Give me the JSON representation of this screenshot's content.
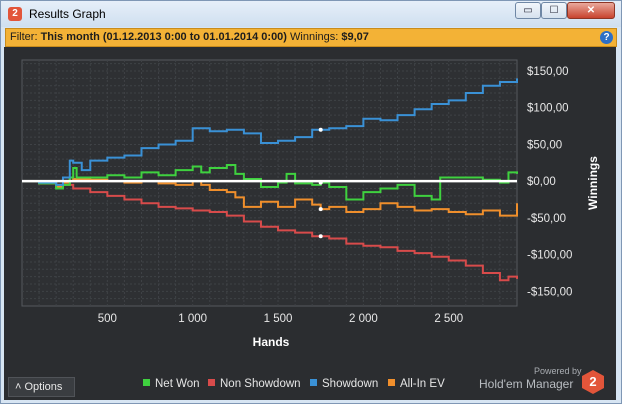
{
  "window": {
    "title": "Results Graph",
    "controls": {
      "minimize": "▭",
      "maximize": "☐",
      "close": "✕"
    },
    "app_icon_text": "2"
  },
  "filter": {
    "label": "Filter:",
    "value": "This month (01.12.2013 0:00 to 01.01.2014 0:00)",
    "winnings_label": "Winnings:",
    "winnings_value": "$9,07",
    "help_text": "?"
  },
  "footer": {
    "options_label": "Options",
    "options_icon": "chevron-up-icon",
    "powered_by": "Powered by",
    "brand": "Hold'em Manager",
    "brand_logo_text": "2"
  },
  "colors": {
    "net_won": "#3fd13f",
    "non_showdown": "#d84b4b",
    "showdown": "#3a91d6",
    "all_in_ev": "#f08f2c",
    "filter_bar": "#f3b236",
    "panel": "#2b2d30"
  },
  "chart_data": {
    "type": "line",
    "xlabel": "Hands",
    "ylabel": "Winnings",
    "xlim": [
      0,
      2900
    ],
    "ylim": [
      -170,
      165
    ],
    "x_ticks": [
      500,
      1000,
      1500,
      2000,
      2500
    ],
    "x_tick_labels": [
      "500",
      "1 000",
      "1 500",
      "2 000",
      "2 500"
    ],
    "y_ticks": [
      150,
      100,
      50,
      0,
      -50,
      -100,
      -150
    ],
    "y_tick_labels": [
      "$150,00",
      "$100,00",
      "$50,00",
      "$0,00",
      "-$50,00",
      "-$100,00",
      "-$150,00"
    ],
    "grid": true,
    "legend_position": "bottom",
    "series": [
      {
        "name": "Net Won",
        "color": "#3fd13f",
        "x": [
          0,
          100,
          200,
          240,
          280,
          300,
          320,
          500,
          600,
          700,
          800,
          900,
          1000,
          1050,
          1100,
          1200,
          1250,
          1300,
          1400,
          1500,
          1550,
          1600,
          1700,
          1750,
          1800,
          1900,
          2000,
          2100,
          2200,
          2300,
          2400,
          2450,
          2600,
          2700,
          2800,
          2850,
          2900
        ],
        "y": [
          0,
          -3,
          -10,
          -5,
          5,
          18,
          5,
          8,
          5,
          12,
          8,
          15,
          20,
          12,
          18,
          22,
          10,
          3,
          -8,
          -2,
          10,
          -3,
          -5,
          -2,
          -8,
          -25,
          -15,
          -10,
          -5,
          -20,
          -25,
          5,
          5,
          2,
          -2,
          12,
          10
        ]
      },
      {
        "name": "Non Showdown",
        "color": "#d84b4b",
        "x": [
          0,
          100,
          200,
          300,
          400,
          500,
          600,
          700,
          800,
          900,
          1000,
          1100,
          1200,
          1300,
          1400,
          1500,
          1600,
          1700,
          1800,
          1900,
          2000,
          2100,
          2200,
          2300,
          2400,
          2500,
          2600,
          2700,
          2800,
          2850,
          2900
        ],
        "y": [
          0,
          -3,
          -5,
          -10,
          -15,
          -20,
          -25,
          -30,
          -35,
          -37,
          -40,
          -42,
          -47,
          -55,
          -62,
          -67,
          -70,
          -75,
          -78,
          -85,
          -88,
          -90,
          -95,
          -98,
          -103,
          -108,
          -115,
          -125,
          -135,
          -130,
          -133
        ]
      },
      {
        "name": "Showdown",
        "color": "#3a91d6",
        "x": [
          0,
          100,
          200,
          240,
          280,
          300,
          350,
          400,
          500,
          600,
          700,
          800,
          900,
          1000,
          1100,
          1200,
          1300,
          1400,
          1500,
          1600,
          1700,
          1800,
          1900,
          2000,
          2100,
          2200,
          2300,
          2400,
          2500,
          2600,
          2700,
          2800,
          2900
        ],
        "y": [
          0,
          -2,
          -5,
          5,
          28,
          25,
          15,
          28,
          32,
          35,
          45,
          50,
          55,
          72,
          68,
          70,
          65,
          52,
          55,
          60,
          70,
          72,
          75,
          85,
          83,
          90,
          98,
          105,
          110,
          120,
          130,
          135,
          140
        ]
      },
      {
        "name": "All-In EV",
        "color": "#f08f2c",
        "x": [
          0,
          100,
          200,
          240,
          280,
          300,
          400,
          500,
          600,
          700,
          800,
          900,
          1000,
          1050,
          1100,
          1200,
          1250,
          1300,
          1400,
          1500,
          1600,
          1700,
          1750,
          1800,
          1900,
          2000,
          2100,
          2200,
          2300,
          2400,
          2500,
          2600,
          2700,
          2800,
          2900
        ],
        "y": [
          0,
          -3,
          -8,
          -2,
          5,
          3,
          2,
          0,
          -2,
          0,
          -3,
          -5,
          0,
          -5,
          -12,
          -15,
          -22,
          -35,
          -28,
          -35,
          -25,
          -32,
          -38,
          -35,
          -42,
          -38,
          -30,
          -35,
          -40,
          -38,
          -42,
          -45,
          -40,
          -47,
          -30
        ]
      }
    ]
  }
}
